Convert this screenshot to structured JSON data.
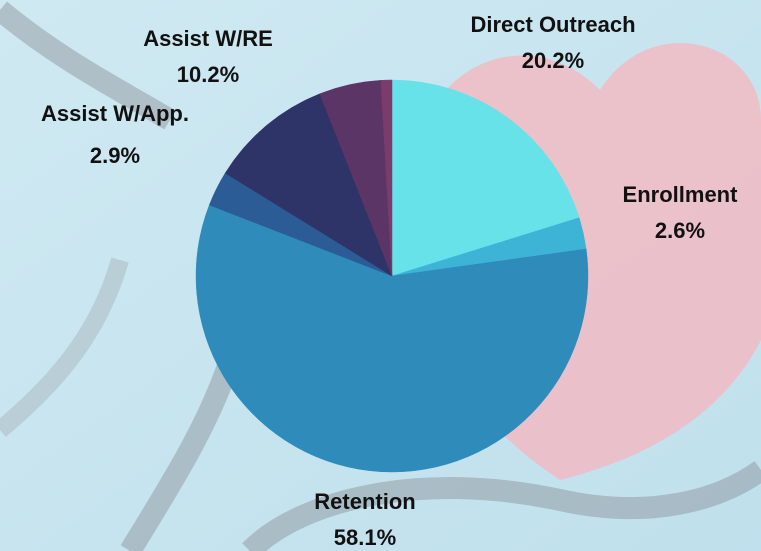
{
  "chart_data": {
    "type": "pie",
    "categories": [
      "Direct Outreach",
      "Enrollment",
      "Retention",
      "Assist W/App.",
      "Assist W/RE",
      null,
      null
    ],
    "values": [
      20.2,
      2.6,
      58.1,
      2.9,
      10.2,
      5.1,
      0.9
    ],
    "value_labels": [
      "20.2%",
      "2.6%",
      "58.1%",
      "2.9%",
      "10.2%",
      null,
      null
    ],
    "colors": [
      "#67e2e8",
      "#3db4d6",
      "#2e8bba",
      "#2b5c96",
      "#2e3468",
      "#5b3565",
      "#7b3c6c"
    ]
  }
}
